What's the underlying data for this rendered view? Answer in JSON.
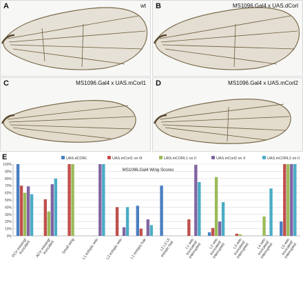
{
  "panels": [
    {
      "letter": "A",
      "title": "wt"
    },
    {
      "letter": "B",
      "title": "MS1096.Gal4 x UAS.dCorl"
    },
    {
      "letter": "C",
      "title": "MS1096.Gal4 x UAS.mCorl1"
    },
    {
      "letter": "D",
      "title": "MS1096.Gal4 x UAS.mCorl2"
    }
  ],
  "chart_letter": "E",
  "colors": {
    "series": [
      "#4a7fc1",
      "#c0504d",
      "#9bbb59",
      "#8064a2",
      "#4bacc6"
    ],
    "grid": "#d9d9d9",
    "axis": "#888888",
    "wing_vein": "#6b5a3a",
    "wing_membrane": "#e6e1d6"
  },
  "icons": [
    "wing-image"
  ],
  "chart_data": {
    "type": "bar",
    "title": "MS1096.Gal4 Wing Scores",
    "xlabel": "",
    "ylabel": "",
    "ylim": [
      0,
      100
    ],
    "yticks": [
      "0%",
      "10%",
      "20%",
      "30%",
      "40%",
      "50%",
      "60%",
      "70%",
      "80%",
      "90%",
      "100%"
    ],
    "grid": true,
    "legend_position": "top",
    "categories": [
      [
        "PCV missing/",
        "truncated"
      ],
      [
        "ACV missing/",
        "truncated"
      ],
      [
        "Small wing"
      ],
      [
        "L1 ectopic vein"
      ],
      [
        "L2 ectopic vein"
      ],
      [
        "L1 ectopic hair"
      ],
      [
        "L2 L3 L5",
        "ectopic hair"
      ],
      [
        "L1 vein",
        "truncated/",
        "interrupted"
      ],
      [
        "L2 vein",
        "truncated/",
        "interrupted"
      ],
      [
        "L3 vein",
        "truncated/",
        "interrupted"
      ],
      [
        "L4 vein",
        "truncated/",
        "interrupted"
      ],
      [
        "L5 vein",
        "truncated/",
        "interrupted"
      ]
    ],
    "series": [
      {
        "name": "UAS.dCORL",
        "values": [
          100,
          0,
          0,
          0,
          0,
          42,
          70,
          0,
          5,
          0,
          0,
          20
        ]
      },
      {
        "name": "UAS.mCorl1 on III",
        "values": [
          70,
          51,
          100,
          0,
          40,
          10,
          0,
          23,
          11,
          3,
          0,
          100
        ]
      },
      {
        "name": "UAS.mCORL1 on II",
        "values": [
          60,
          34,
          100,
          0,
          0,
          0,
          0,
          0,
          82,
          2,
          27,
          100
        ]
      },
      {
        "name": "UAS.mCorl2 on X",
        "values": [
          69,
          72,
          0,
          100,
          12,
          23,
          0,
          99,
          20,
          0,
          1,
          100
        ]
      },
      {
        "name": "UAS.mCORL2 on II",
        "values": [
          58,
          80,
          0,
          100,
          40,
          15,
          0,
          75,
          47,
          0,
          66,
          100
        ]
      }
    ]
  }
}
